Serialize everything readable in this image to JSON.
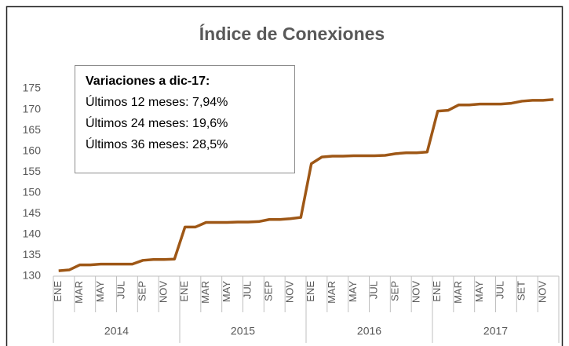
{
  "chart_data": {
    "type": "line",
    "title": "Índice de Conexiones",
    "categories": [
      "ENE",
      null,
      "MAR",
      null,
      "MAY",
      null,
      "JUL",
      null,
      "SEP",
      null,
      "NOV",
      null,
      "ENE",
      null,
      "MAR",
      null,
      "MAY",
      null,
      "JUL",
      null,
      "SEP",
      null,
      "NOV",
      null,
      "ENE",
      null,
      "MAR",
      null,
      "MAY",
      null,
      "JUL",
      null,
      "SEP",
      null,
      "NOV",
      null,
      "ENE",
      null,
      "MAR",
      null,
      "MAY",
      null,
      "JUL",
      null,
      "SET",
      null,
      "NOV",
      null
    ],
    "year_groups": [
      "2014",
      "2015",
      "2016",
      "2017"
    ],
    "series": [
      {
        "name": "Índice de Conexiones",
        "color": "#9e5716",
        "values": [
          131.3,
          131.5,
          132.7,
          132.7,
          132.9,
          132.9,
          132.9,
          132.9,
          133.8,
          134.0,
          134.0,
          134.1,
          141.8,
          141.8,
          142.9,
          142.9,
          142.9,
          143.0,
          143.0,
          143.1,
          143.6,
          143.6,
          143.8,
          144.1,
          157.0,
          158.6,
          158.8,
          158.8,
          158.9,
          158.9,
          158.9,
          159.0,
          159.4,
          159.6,
          159.6,
          159.8,
          169.6,
          169.8,
          171.1,
          171.1,
          171.3,
          171.3,
          171.3,
          171.5,
          172.0,
          172.2,
          172.2,
          172.4
        ]
      }
    ],
    "ylim": [
      130,
      175
    ],
    "yticks": [
      130,
      135,
      140,
      145,
      150,
      155,
      160,
      165,
      170,
      175
    ],
    "grid": false,
    "annotation": {
      "title": "Variaciones a dic-17:",
      "lines": [
        "Últimos 12 meses: 7,94%",
        "Últimos 24 meses: 19,6%",
        "Últimos 36 meses: 28,5%"
      ]
    }
  }
}
